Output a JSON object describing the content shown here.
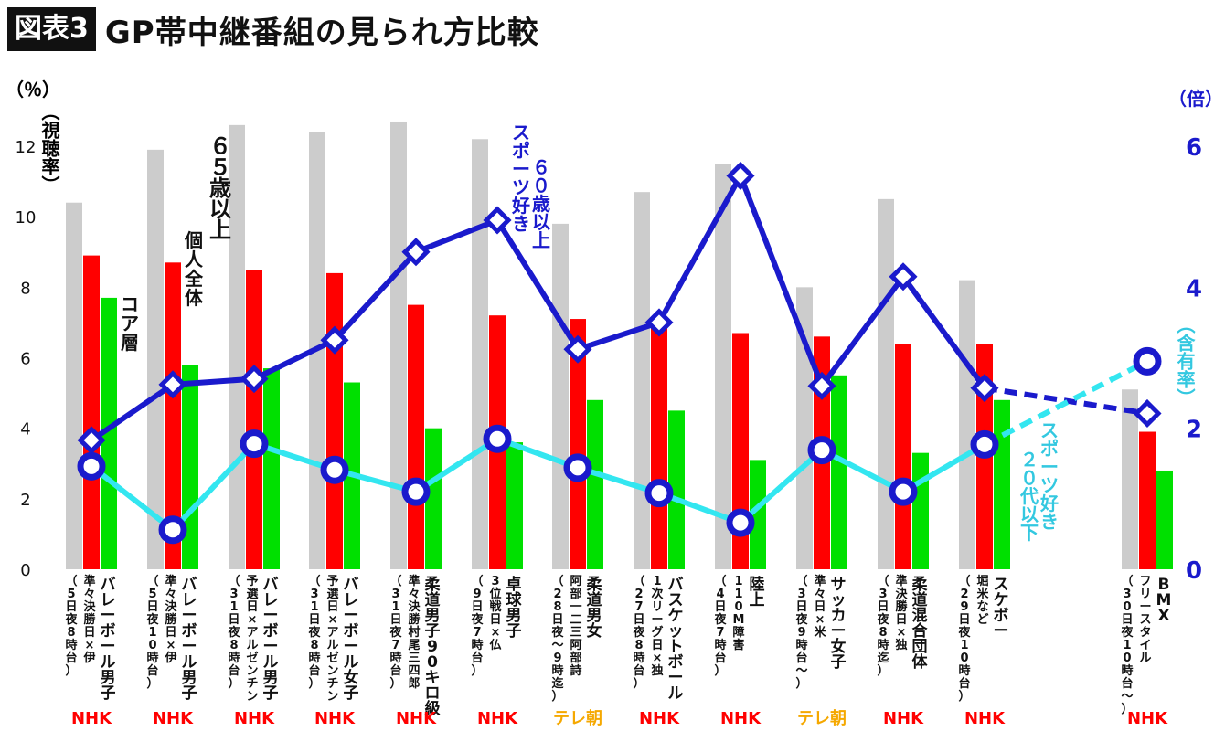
{
  "header": {
    "tag": "図表3",
    "title": "GP帯中継番組の見られ方比較"
  },
  "axes": {
    "left_unit": "（％）",
    "right_unit": "（倍）",
    "left_label": "（視聴率）",
    "right_label": "（含有率）"
  },
  "colors": {
    "gray": "#cccccc",
    "red": "#ff0000",
    "green": "#00e000",
    "blue": "#1a1acc",
    "cyan": "#33e6f0",
    "nhk": "#ff0000",
    "asahi": "#f5a800"
  },
  "chart_data": {
    "type": "bar",
    "y_left": {
      "ylim": [
        0,
        13
      ],
      "ticks": [
        0,
        2,
        4,
        6,
        8,
        10,
        12
      ]
    },
    "y_right": {
      "ylim": [
        0,
        6.5
      ],
      "ticks": [
        0,
        2,
        4,
        6
      ]
    },
    "categories": [
      {
        "main": "バレーボール男子",
        "sub": "準々決勝 日×伊",
        "when": "（5日夜8時台）",
        "net": "NHK"
      },
      {
        "main": "バレーボール男子",
        "sub": "準々決勝 日×伊",
        "when": "（5日夜10時台）",
        "net": "NHK"
      },
      {
        "main": "バレーボール男子",
        "sub": "予選 日×アルゼンチン",
        "when": "（31日夜8時台）",
        "net": "NHK"
      },
      {
        "main": "バレーボール女子",
        "sub": "予選 日×アルゼンチン",
        "when": "（31日夜8時台）",
        "net": "NHK"
      },
      {
        "main": "柔道男子90キロ級",
        "sub": "準々決勝 村尾三四郎",
        "when": "（31日夜7時台）",
        "net": "NHK"
      },
      {
        "main": "卓球男子",
        "sub": "3位戦 日×仏",
        "when": "（9日夜7時台）",
        "net": "NHK"
      },
      {
        "main": "柔道男女",
        "sub": "阿部一二三 阿部詩",
        "when": "（28日夜〜9時迄）",
        "net": "テレ朝"
      },
      {
        "main": "バスケットボール",
        "sub": "1次リーグ 日×独",
        "when": "（27日夜8時台）",
        "net": "NHK"
      },
      {
        "main": "陸上",
        "sub": "110M障害",
        "when": "（4日夜7時台）",
        "net": "NHK"
      },
      {
        "main": "サッカー女子",
        "sub": "準々 日×米",
        "when": "（3日夜9時台〜）",
        "net": "テレ朝"
      },
      {
        "main": "柔道混合団体",
        "sub": "準決勝 日×独",
        "when": "（3日夜8時迄）",
        "net": "NHK"
      },
      {
        "main": "スケボー",
        "sub": "堀米など",
        "when": "（29日夜10時台）",
        "net": "NHK"
      },
      {
        "main": "BMX",
        "sub": "フリースタイル",
        "when": "（30日夜10時台〜）",
        "net": "NHK"
      }
    ],
    "series": [
      {
        "key": "bar",
        "axis": "left",
        "color": "#cccccc",
        "values": [
          10.4,
          11.9,
          12.6,
          12.4,
          12.7,
          12.2,
          9.8,
          10.7,
          11.5,
          8.0,
          10.5,
          8.2,
          5.1
        ]
      },
      {
        "key": "bar",
        "axis": "left",
        "color": "#ff0000",
        "values": [
          8.9,
          8.7,
          8.5,
          8.4,
          7.5,
          7.2,
          7.1,
          6.9,
          6.7,
          6.6,
          6.4,
          6.4,
          3.9
        ]
      },
      {
        "key": "bar",
        "axis": "left",
        "color": "#00e000",
        "values": [
          7.7,
          5.8,
          5.7,
          5.3,
          4.0,
          3.6,
          4.8,
          4.5,
          3.1,
          5.5,
          3.3,
          4.8,
          2.8
        ]
      },
      {
        "key": "line",
        "axis": "right",
        "color": "#1a1acc",
        "values": [
          1.83,
          2.62,
          2.7,
          3.25,
          4.5,
          4.95,
          3.12,
          3.5,
          5.58,
          2.6,
          4.15,
          2.57,
          2.21
        ],
        "dashed_last": true
      },
      {
        "key": "line",
        "axis": "right",
        "color": "#33e6f0",
        "values": [
          1.46,
          0.56,
          1.78,
          1.41,
          1.1,
          1.85,
          1.44,
          1.08,
          0.66,
          1.69,
          1.1,
          1.77,
          2.95
        ],
        "dashed_last": true
      }
    ],
    "annotations": {
      "s65": "６５歳以上",
      "kojin": "個人全体",
      "core": "コア層",
      "sp60": "スポーツ好き ６０歳以上",
      "sp20": "スポーツ好き ２０代以下"
    }
  }
}
